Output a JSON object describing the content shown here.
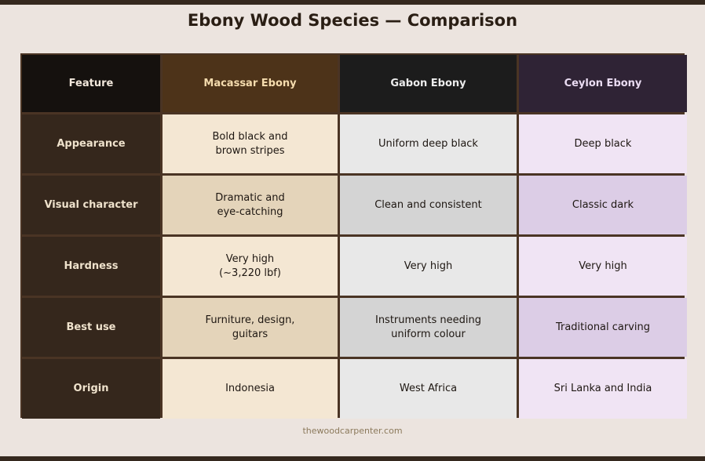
{
  "title": "Ebony Wood Species — Comparison",
  "headers": [
    "Feature",
    "Macassar Ebony",
    "Gabon Ebony",
    "Ceylon Ebony"
  ],
  "rows": [
    {
      "feature": "Appearance",
      "macassar": "Bold black and\nbrown stripes",
      "gabon": "Uniform deep black",
      "ceylon": "Deep black"
    },
    {
      "feature": "Visual character",
      "macassar": "Dramatic and\neye-catching",
      "gabon": "Clean and consistent",
      "ceylon": "Classic dark"
    },
    {
      "feature": "Hardness",
      "macassar": "Very high\n(~3,220 lbf)",
      "gabon": "Very high",
      "ceylon": "Very high"
    },
    {
      "feature": "Best use",
      "macassar": "Furniture, design,\nguitars",
      "gabon": "Instruments needing\nuniform colour",
      "ceylon": "Traditional carving"
    },
    {
      "feature": "Origin",
      "macassar": "Indonesia",
      "gabon": "West Africa",
      "ceylon": "Sri Lanka and India"
    }
  ],
  "footer": "thewoodcarpenter.com",
  "colors": {
    "header_feature": "#15110e",
    "header_macassar": "#4d3319",
    "header_gabon": "#1c1c1c",
    "header_ceylon": "#2f2335",
    "macassar_light": "#f4e7d3",
    "macassar_dark": "#e4d4ba",
    "gabon_light": "#e8e8e8",
    "gabon_dark": "#d4d4d4",
    "ceylon_light": "#f0e4f4",
    "ceylon_dark": "#dccde6",
    "border": "#4a3424"
  }
}
